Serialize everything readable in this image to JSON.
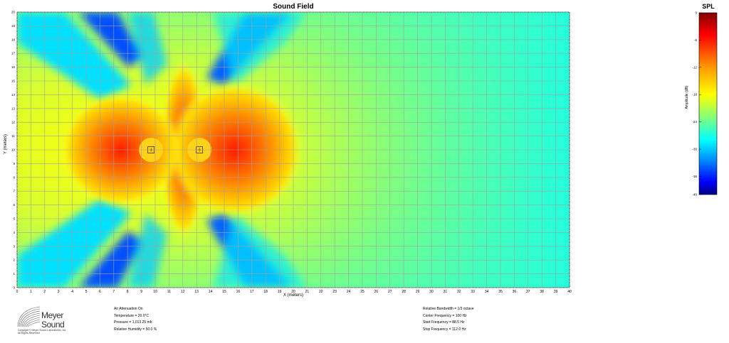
{
  "chart_data": {
    "type": "heatmap",
    "title": "Sound Field",
    "xlabel": "X (meters)",
    "ylabel": "Y (meters)",
    "xlim": [
      0,
      40
    ],
    "ylim": [
      0,
      20
    ],
    "x_ticks": [
      "0",
      "1",
      "2",
      "3",
      "4",
      "5",
      "6",
      "7",
      "8",
      "9",
      "10",
      "11",
      "12",
      "13",
      "14",
      "15",
      "16",
      "17",
      "18",
      "19",
      "20",
      "21",
      "22",
      "23",
      "24",
      "25",
      "26",
      "27",
      "28",
      "29",
      "30",
      "31",
      "32",
      "33",
      "34",
      "35",
      "36",
      "37",
      "38",
      "39",
      "40"
    ],
    "y_ticks": [
      "0",
      "1",
      "2",
      "3",
      "4",
      "5",
      "6",
      "7",
      "8",
      "9",
      "10",
      "11",
      "12",
      "13",
      "14",
      "15",
      "16",
      "17",
      "18",
      "19",
      "20"
    ],
    "sources": [
      {
        "x": 9.7,
        "y": 10.0
      },
      {
        "x": 13.2,
        "y": 10.0
      }
    ],
    "colorbar": {
      "title": "SPL",
      "label": "Amplitude (dB)",
      "range": [
        -40,
        0
      ],
      "ticks": [
        "0",
        "-6",
        "-12",
        "-18",
        "-24",
        "-30",
        "-36",
        "-40"
      ],
      "colors": [
        "#7f0000",
        "#ff0000",
        "#ffa500",
        "#ffff00",
        "#7fff7f",
        "#00ffff",
        "#0080ff",
        "#0000ff",
        "#00007f"
      ]
    },
    "grid": true
  },
  "info_left": [
    "Air Attenuation On",
    "Temperature = 20.0°C",
    "Pressure = 1,013.25 mb",
    "Relative Humidity = 50.0 %"
  ],
  "info_right": [
    "Relative Bandwidth = 1/3 octave",
    "Center Frequency = 100 Hz",
    "Start Frequency = 88.5 Hz",
    "Stop Frequency = 112.0 Hz"
  ],
  "logo": {
    "line1": "Meyer",
    "line2": "Sound",
    "copyright1": "Copyright © Meyer Sound Laboratories, Inc.",
    "copyright2": "All Rights Reserved"
  },
  "watermark": "Meyer Sound"
}
